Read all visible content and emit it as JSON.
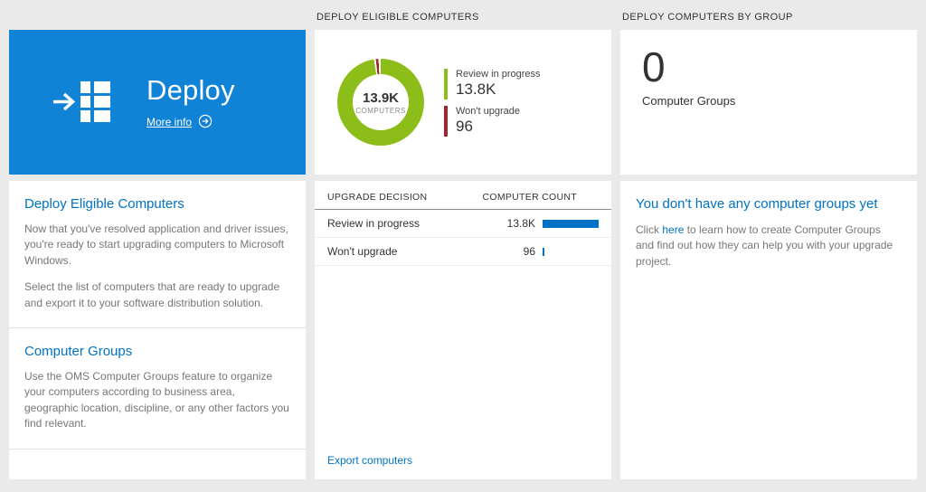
{
  "colors": {
    "tile_blue": "#1083d6",
    "green": "#8cbd18",
    "red": "#a0262c",
    "bar_blue": "#0072c6",
    "link_blue": "#0072c6"
  },
  "columns": {
    "left": {
      "tile": {
        "title": "Deploy",
        "more_info": "More info"
      },
      "sections": [
        {
          "heading": "Deploy Eligible Computers",
          "paragraphs": [
            "Now that you've resolved application and driver issues, you're ready to start upgrading computers to Microsoft Windows.",
            "Select the list of computers that are ready to upgrade and export it to your software distribution solution."
          ]
        },
        {
          "heading": "Computer Groups",
          "paragraphs": [
            "Use the OMS Computer Groups feature to organize your computers according to business area, geographic location, discipline, or any other factors you find relevant."
          ]
        }
      ]
    },
    "middle": {
      "header": "DEPLOY ELIGIBLE COMPUTERS",
      "donut": {
        "center_value": "13.9K",
        "center_label": "COMPUTERS",
        "legend": [
          {
            "label": "Review in progress",
            "value": "13.8K",
            "color": "#8cbd18"
          },
          {
            "label": "Won't upgrade",
            "value": "96",
            "color": "#a0262c"
          }
        ]
      },
      "table": {
        "col1": "UPGRADE DECISION",
        "col2": "COMPUTER COUNT",
        "rows": [
          {
            "label": "Review in progress",
            "value": "13.8K",
            "bar_pct": 100
          },
          {
            "label": "Won't upgrade",
            "value": "96",
            "bar_pct": 2
          }
        ]
      },
      "export_link": "Export computers"
    },
    "right": {
      "header": "DEPLOY COMPUTERS BY GROUP",
      "tile": {
        "count": "0",
        "label": "Computer Groups"
      },
      "panel": {
        "heading": "You don't have any computer groups yet",
        "text_before": "Click ",
        "link": "here",
        "text_after": " to learn how to create Computer Groups and find out how they can help you with your upgrade project."
      }
    }
  }
}
